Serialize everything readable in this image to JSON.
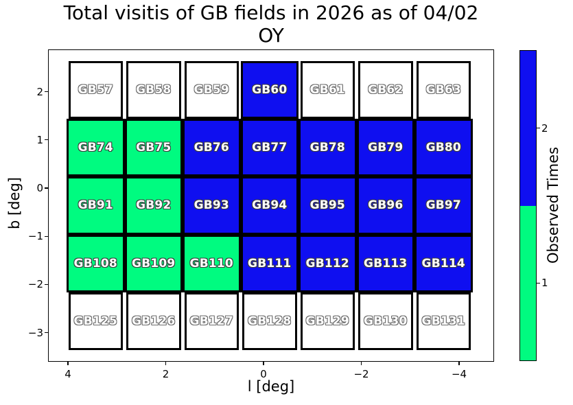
{
  "title": {
    "line1": "Total visitis of GB fields in 2026 as of 04/02",
    "line2": "OY"
  },
  "axes": {
    "xlabel": "l [deg]",
    "ylabel": "b [deg]",
    "x_ticks": [
      {
        "v": 4,
        "label": "4"
      },
      {
        "v": 2,
        "label": "2"
      },
      {
        "v": 0,
        "label": "0"
      },
      {
        "v": -2,
        "label": "−2"
      },
      {
        "v": -4,
        "label": "−4"
      }
    ],
    "y_ticks": [
      {
        "v": 2,
        "label": "2"
      },
      {
        "v": 1,
        "label": "1"
      },
      {
        "v": 0,
        "label": "0"
      },
      {
        "v": -1,
        "label": "−1"
      },
      {
        "v": -2,
        "label": "−2"
      },
      {
        "v": -3,
        "label": "−3"
      }
    ]
  },
  "colorbar": {
    "label": "Observed Times",
    "top_color": "#0f0ff0",
    "bottom_color": "#00fb80",
    "ticks": [
      {
        "frac": 0.25,
        "label": "2"
      },
      {
        "frac": 0.75,
        "label": "1"
      }
    ]
  },
  "status_colors": [
    "#ffffff",
    "#00fb80",
    "#0f0ff0"
  ],
  "chart_data": {
    "type": "heatmap",
    "title": "Total visitis of GB fields in 2026 as of 04/02 OY",
    "xlabel": "l [deg]",
    "ylabel": "b [deg]",
    "colorbar_label": "Observed Times",
    "colorbar_ticks": [
      1,
      2
    ],
    "value_meaning": {
      "0": "not observed (white)",
      "1": "observed once (green)",
      "2": "observed twice (blue)"
    },
    "x_range": [
      4.4,
      -4.7
    ],
    "y_range": [
      -3.6,
      2.9
    ],
    "l_centers": [
      3.4,
      2.2,
      1.1,
      -0.1,
      -1.3,
      -2.5,
      -3.7
    ],
    "b_centers": [
      2.0,
      0.8,
      -0.4,
      -1.6,
      -2.8
    ],
    "rows": [
      {
        "b": 2.0,
        "cells": [
          {
            "label": "GB57",
            "observed": 0
          },
          {
            "label": "GB58",
            "observed": 0
          },
          {
            "label": "GB59",
            "observed": 0
          },
          {
            "label": "GB60",
            "observed": 2
          },
          {
            "label": "GB61",
            "observed": 0
          },
          {
            "label": "GB62",
            "observed": 0
          },
          {
            "label": "GB63",
            "observed": 0
          }
        ]
      },
      {
        "b": 0.8,
        "cells": [
          {
            "label": "GB74",
            "observed": 1
          },
          {
            "label": "GB75",
            "observed": 1
          },
          {
            "label": "GB76",
            "observed": 2
          },
          {
            "label": "GB77",
            "observed": 2
          },
          {
            "label": "GB78",
            "observed": 2
          },
          {
            "label": "GB79",
            "observed": 2
          },
          {
            "label": "GB80",
            "observed": 2
          }
        ]
      },
      {
        "b": -0.4,
        "cells": [
          {
            "label": "GB91",
            "observed": 1
          },
          {
            "label": "GB92",
            "observed": 1
          },
          {
            "label": "GB93",
            "observed": 2
          },
          {
            "label": "GB94",
            "observed": 2
          },
          {
            "label": "GB95",
            "observed": 2
          },
          {
            "label": "GB96",
            "observed": 2
          },
          {
            "label": "GB97",
            "observed": 2
          }
        ]
      },
      {
        "b": -1.6,
        "cells": [
          {
            "label": "GB108",
            "observed": 1
          },
          {
            "label": "GB109",
            "observed": 1
          },
          {
            "label": "GB110",
            "observed": 1
          },
          {
            "label": "GB111",
            "observed": 2
          },
          {
            "label": "GB112",
            "observed": 2
          },
          {
            "label": "GB113",
            "observed": 2
          },
          {
            "label": "GB114",
            "observed": 2
          }
        ]
      },
      {
        "b": -2.8,
        "cells": [
          {
            "label": "GB125",
            "observed": 0
          },
          {
            "label": "GB126",
            "observed": 0
          },
          {
            "label": "GB127",
            "observed": 0
          },
          {
            "label": "GB128",
            "observed": 0
          },
          {
            "label": "GB129",
            "observed": 0
          },
          {
            "label": "GB130",
            "observed": 0
          },
          {
            "label": "GB131",
            "observed": 0
          }
        ]
      }
    ]
  }
}
